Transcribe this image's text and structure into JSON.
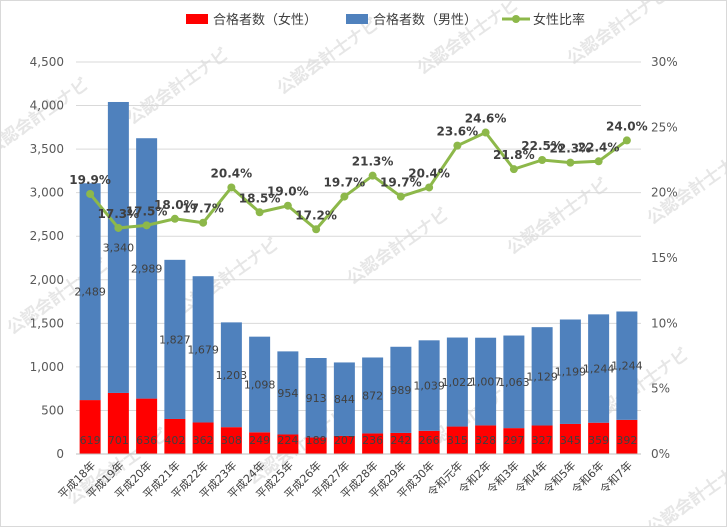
{
  "chart_data": {
    "type": "bar",
    "stacked": true,
    "categories": [
      "平成18年",
      "平成19年",
      "平成20年",
      "平成21年",
      "平成22年",
      "平成23年",
      "平成24年",
      "平成25年",
      "平成26年",
      "平成27年",
      "平成28年",
      "平成29年",
      "平成30年",
      "令和元年",
      "令和2年",
      "令和3年",
      "令和4年",
      "令和5年",
      "令和6年",
      "令和7年"
    ],
    "series": [
      {
        "name": "合格者数（女性）",
        "type": "bar",
        "axis": "left",
        "color": "#ff0000",
        "values": [
          619,
          701,
          636,
          402,
          362,
          308,
          249,
          224,
          189,
          207,
          236,
          242,
          266,
          315,
          328,
          297,
          327,
          345,
          359,
          392
        ]
      },
      {
        "name": "合格者数（男性）",
        "type": "bar",
        "axis": "left",
        "color": "#4f81bd",
        "values": [
          2489,
          3340,
          2989,
          1827,
          1679,
          1203,
          1098,
          954,
          913,
          844,
          872,
          989,
          1039,
          1022,
          1007,
          1063,
          1129,
          1199,
          1244,
          1244
        ]
      },
      {
        "name": "女性比率",
        "type": "line",
        "axis": "right",
        "color": "#8db84a",
        "values": [
          19.9,
          17.3,
          17.5,
          18.0,
          17.7,
          20.4,
          18.5,
          19.0,
          17.2,
          19.7,
          21.3,
          19.7,
          20.4,
          23.6,
          24.6,
          21.8,
          22.5,
          22.3,
          22.4,
          24.0
        ]
      }
    ],
    "ylim": [
      0,
      4500
    ],
    "yticks": [
      "0",
      "500",
      "1,000",
      "1,500",
      "2,000",
      "2,500",
      "3,000",
      "3,500",
      "4,000",
      "4,500"
    ],
    "y2lim": [
      0,
      30
    ],
    "y2ticks": [
      "0%",
      "5%",
      "10%",
      "15%",
      "20%",
      "25%",
      "30%"
    ],
    "grid": true,
    "legend": "top",
    "watermark": "公認会計士ナビ"
  }
}
